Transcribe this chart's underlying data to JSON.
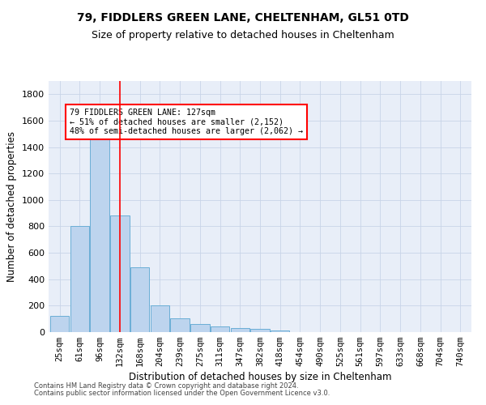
{
  "title1": "79, FIDDLERS GREEN LANE, CHELTENHAM, GL51 0TD",
  "title2": "Size of property relative to detached houses in Cheltenham",
  "xlabel": "Distribution of detached houses by size in Cheltenham",
  "ylabel": "Number of detached properties",
  "footnote1": "Contains HM Land Registry data © Crown copyright and database right 2024.",
  "footnote2": "Contains public sector information licensed under the Open Government Licence v3.0.",
  "categories": [
    "25sqm",
    "61sqm",
    "96sqm",
    "132sqm",
    "168sqm",
    "204sqm",
    "239sqm",
    "275sqm",
    "311sqm",
    "347sqm",
    "382sqm",
    "418sqm",
    "454sqm",
    "490sqm",
    "525sqm",
    "561sqm",
    "597sqm",
    "633sqm",
    "668sqm",
    "704sqm",
    "740sqm"
  ],
  "values": [
    125,
    800,
    1480,
    880,
    490,
    205,
    105,
    62,
    40,
    32,
    25,
    12,
    0,
    0,
    0,
    0,
    0,
    0,
    0,
    0,
    0
  ],
  "bar_color": "#bdd4ee",
  "bar_edge_color": "#6aaed6",
  "grid_color": "#c8d4e8",
  "vline_x_index": 3,
  "vline_color": "red",
  "annotation_line1": "79 FIDDLERS GREEN LANE: 127sqm",
  "annotation_line2": "← 51% of detached houses are smaller (2,152)",
  "annotation_line3": "48% of semi-detached houses are larger (2,062) →",
  "annotation_box_edgecolor": "red",
  "annotation_box_facecolor": "white",
  "ylim": [
    0,
    1900
  ],
  "yticks": [
    0,
    200,
    400,
    600,
    800,
    1000,
    1200,
    1400,
    1600,
    1800
  ],
  "bg_color": "#e8eef8",
  "title1_fontsize": 10,
  "title2_fontsize": 9,
  "xlabel_fontsize": 8.5,
  "ylabel_fontsize": 8.5,
  "tick_fontsize": 8,
  "xtick_fontsize": 7.5,
  "footnote_fontsize": 6
}
